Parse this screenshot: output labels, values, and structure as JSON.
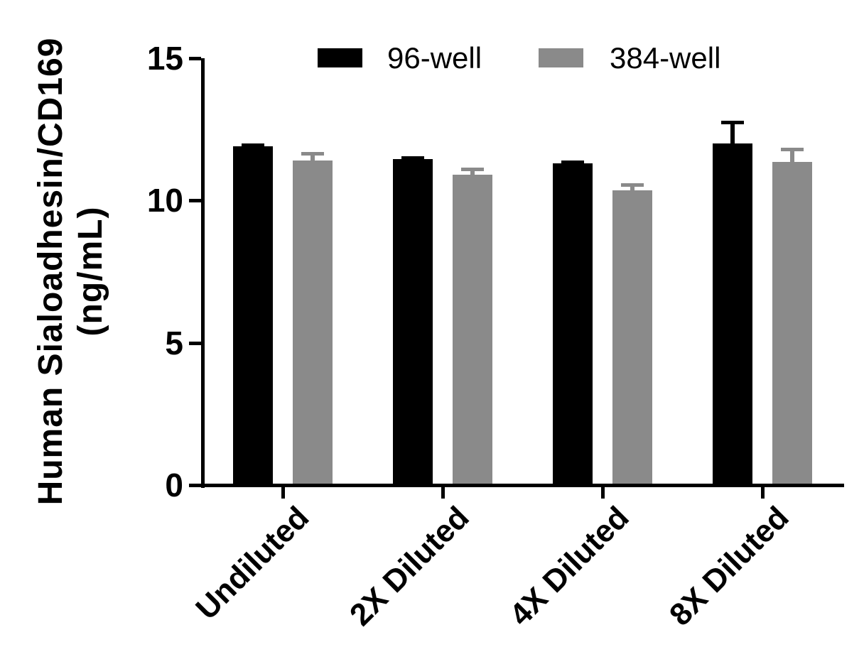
{
  "chart_data": {
    "type": "bar",
    "title": "",
    "xlabel": "",
    "ylabel": "Human Sialoadhesin/CD169 (ng/mL)",
    "ylabel_lines": [
      "Human Sialoadhesin/CD169",
      "(ng/mL)"
    ],
    "categories": [
      "Undiluted",
      "2X Diluted",
      "4X Diluted",
      "8X Diluted"
    ],
    "series": [
      {
        "name": "96-well",
        "color": "#000000",
        "values": [
          11.9,
          11.45,
          11.3,
          12.0
        ],
        "errors": [
          0.1,
          0.1,
          0.1,
          0.8
        ]
      },
      {
        "name": "384-well",
        "color": "#8a8a8a",
        "values": [
          11.4,
          10.9,
          10.35,
          11.35
        ],
        "errors": [
          0.3,
          0.25,
          0.25,
          0.5
        ]
      }
    ],
    "ylim": [
      0,
      15
    ],
    "yticks": [
      0,
      5,
      10,
      15
    ],
    "grid": false,
    "legend_position": "top",
    "error_bars": true,
    "axis_color": "#000000",
    "background_color": "#ffffff"
  }
}
